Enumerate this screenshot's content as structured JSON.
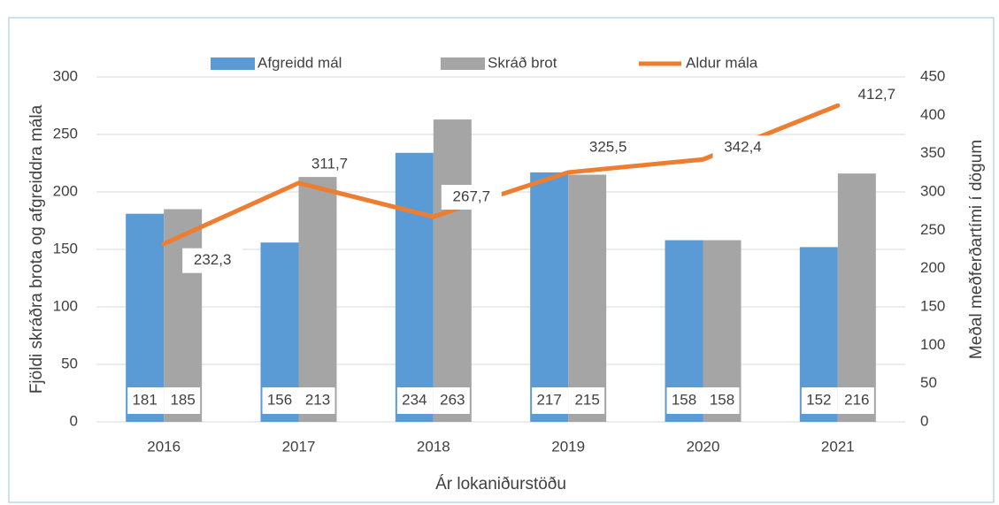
{
  "chart_data": {
    "type": "bar_line",
    "categories": [
      "2016",
      "2017",
      "2018",
      "2019",
      "2020",
      "2021"
    ],
    "series": [
      {
        "name": "Afgreidd mál",
        "color": "#5b9bd5",
        "values": [
          181,
          156,
          234,
          217,
          158,
          152
        ]
      },
      {
        "name": "Skráð brot",
        "color": "#a5a5a5",
        "values": [
          185,
          213,
          263,
          215,
          158,
          216
        ]
      },
      {
        "name": "Aldur mála",
        "color": "#ed7d31",
        "type": "line",
        "axis": "y2",
        "values": [
          232.3,
          311.7,
          267.7,
          325.5,
          342.4,
          412.7
        ],
        "value_labels": [
          "232,3",
          "311,7",
          "267,7",
          "325,5",
          "342,4",
          "412,7"
        ]
      }
    ],
    "xlabel": "Ár lokaniðurstöðu",
    "ylabel": "Fjöldi skráðra brota og afgreiddra mála",
    "y2label": "Meðal meðferðartími í dögum",
    "ylim": [
      0,
      300
    ],
    "yticks": [
      0,
      50,
      100,
      150,
      200,
      250,
      300
    ],
    "y2lim": [
      0,
      450
    ],
    "y2ticks": [
      0,
      50,
      100,
      150,
      200,
      250,
      300,
      350,
      400,
      450
    ],
    "grid": true,
    "legend": "top"
  }
}
